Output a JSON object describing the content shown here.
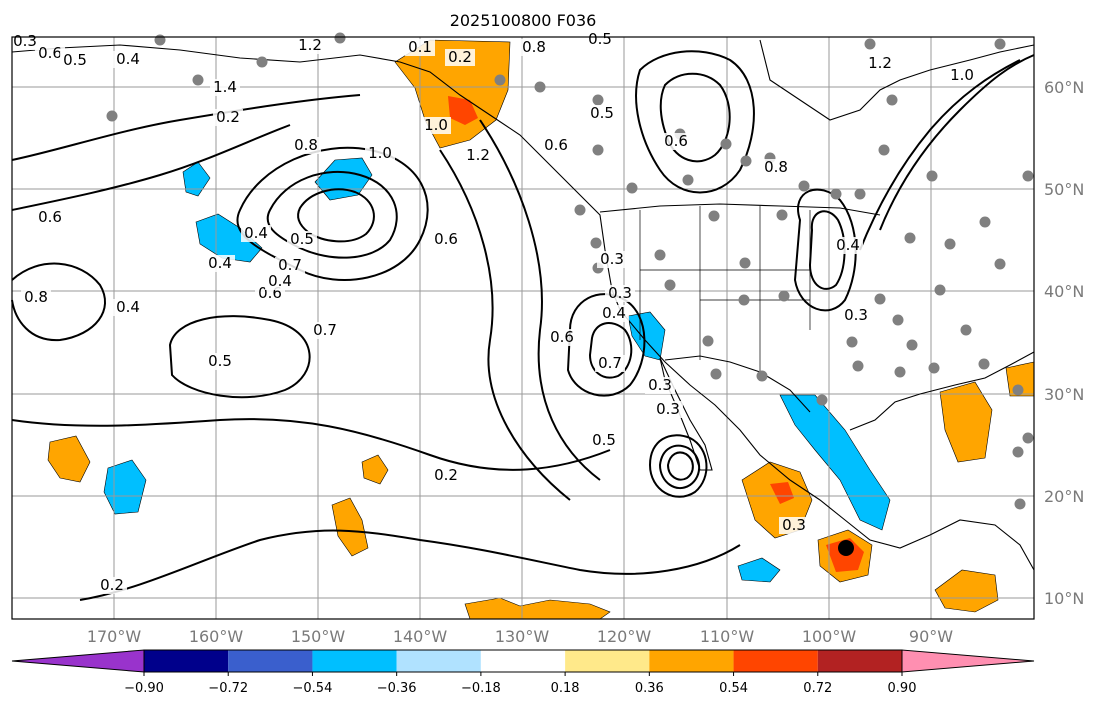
{
  "title": "2025100800 F036",
  "lat_labels": [
    "60°N",
    "50°N",
    "40°N",
    "30°N",
    "20°N",
    "10°N"
  ],
  "lon_labels": [
    "170°W",
    "160°W",
    "150°W",
    "140°W",
    "130°W",
    "120°W",
    "110°W",
    "100°W",
    "90°W"
  ],
  "colorbar": {
    "colors": [
      "#9933cc",
      "#00008b",
      "#3a5fcd",
      "#00bfff",
      "#b0e2ff",
      "#ffffff",
      "#ffe98a",
      "#ffa500",
      "#ff4500",
      "#b22222",
      "#ff8fb1"
    ],
    "labels": [
      "−0.90",
      "−0.72",
      "−0.54",
      "−0.36",
      "−0.18",
      "0.18",
      "0.36",
      "0.54",
      "0.72",
      "0.90"
    ]
  },
  "contour_labels": [
    "0.6",
    "0.5",
    "0.4",
    "0.3",
    "0.2",
    "0.1",
    "0.2",
    "0.4",
    "0.5",
    "0.6",
    "0.8",
    "1.0",
    "1.2",
    "1.4",
    "1.0",
    "1.2",
    "0.7",
    "0.6",
    "0.8",
    "0.6",
    "0.7",
    "0.5",
    "0.4",
    "0.4",
    "0.4",
    "0.5",
    "0.6",
    "0.3",
    "0.3",
    "0.4",
    "0.6",
    "0.7",
    "0.3",
    "0.5",
    "0.3",
    "0.2",
    "0.2",
    "0.3",
    "0.8",
    "0.5",
    "0.6",
    "0.8",
    "1.0",
    "1.2",
    "0.4",
    "0.3"
  ],
  "colors": {
    "frame": "#000000",
    "grid": "#9a9a9a",
    "contour": "#000000",
    "station": "#808080"
  }
}
